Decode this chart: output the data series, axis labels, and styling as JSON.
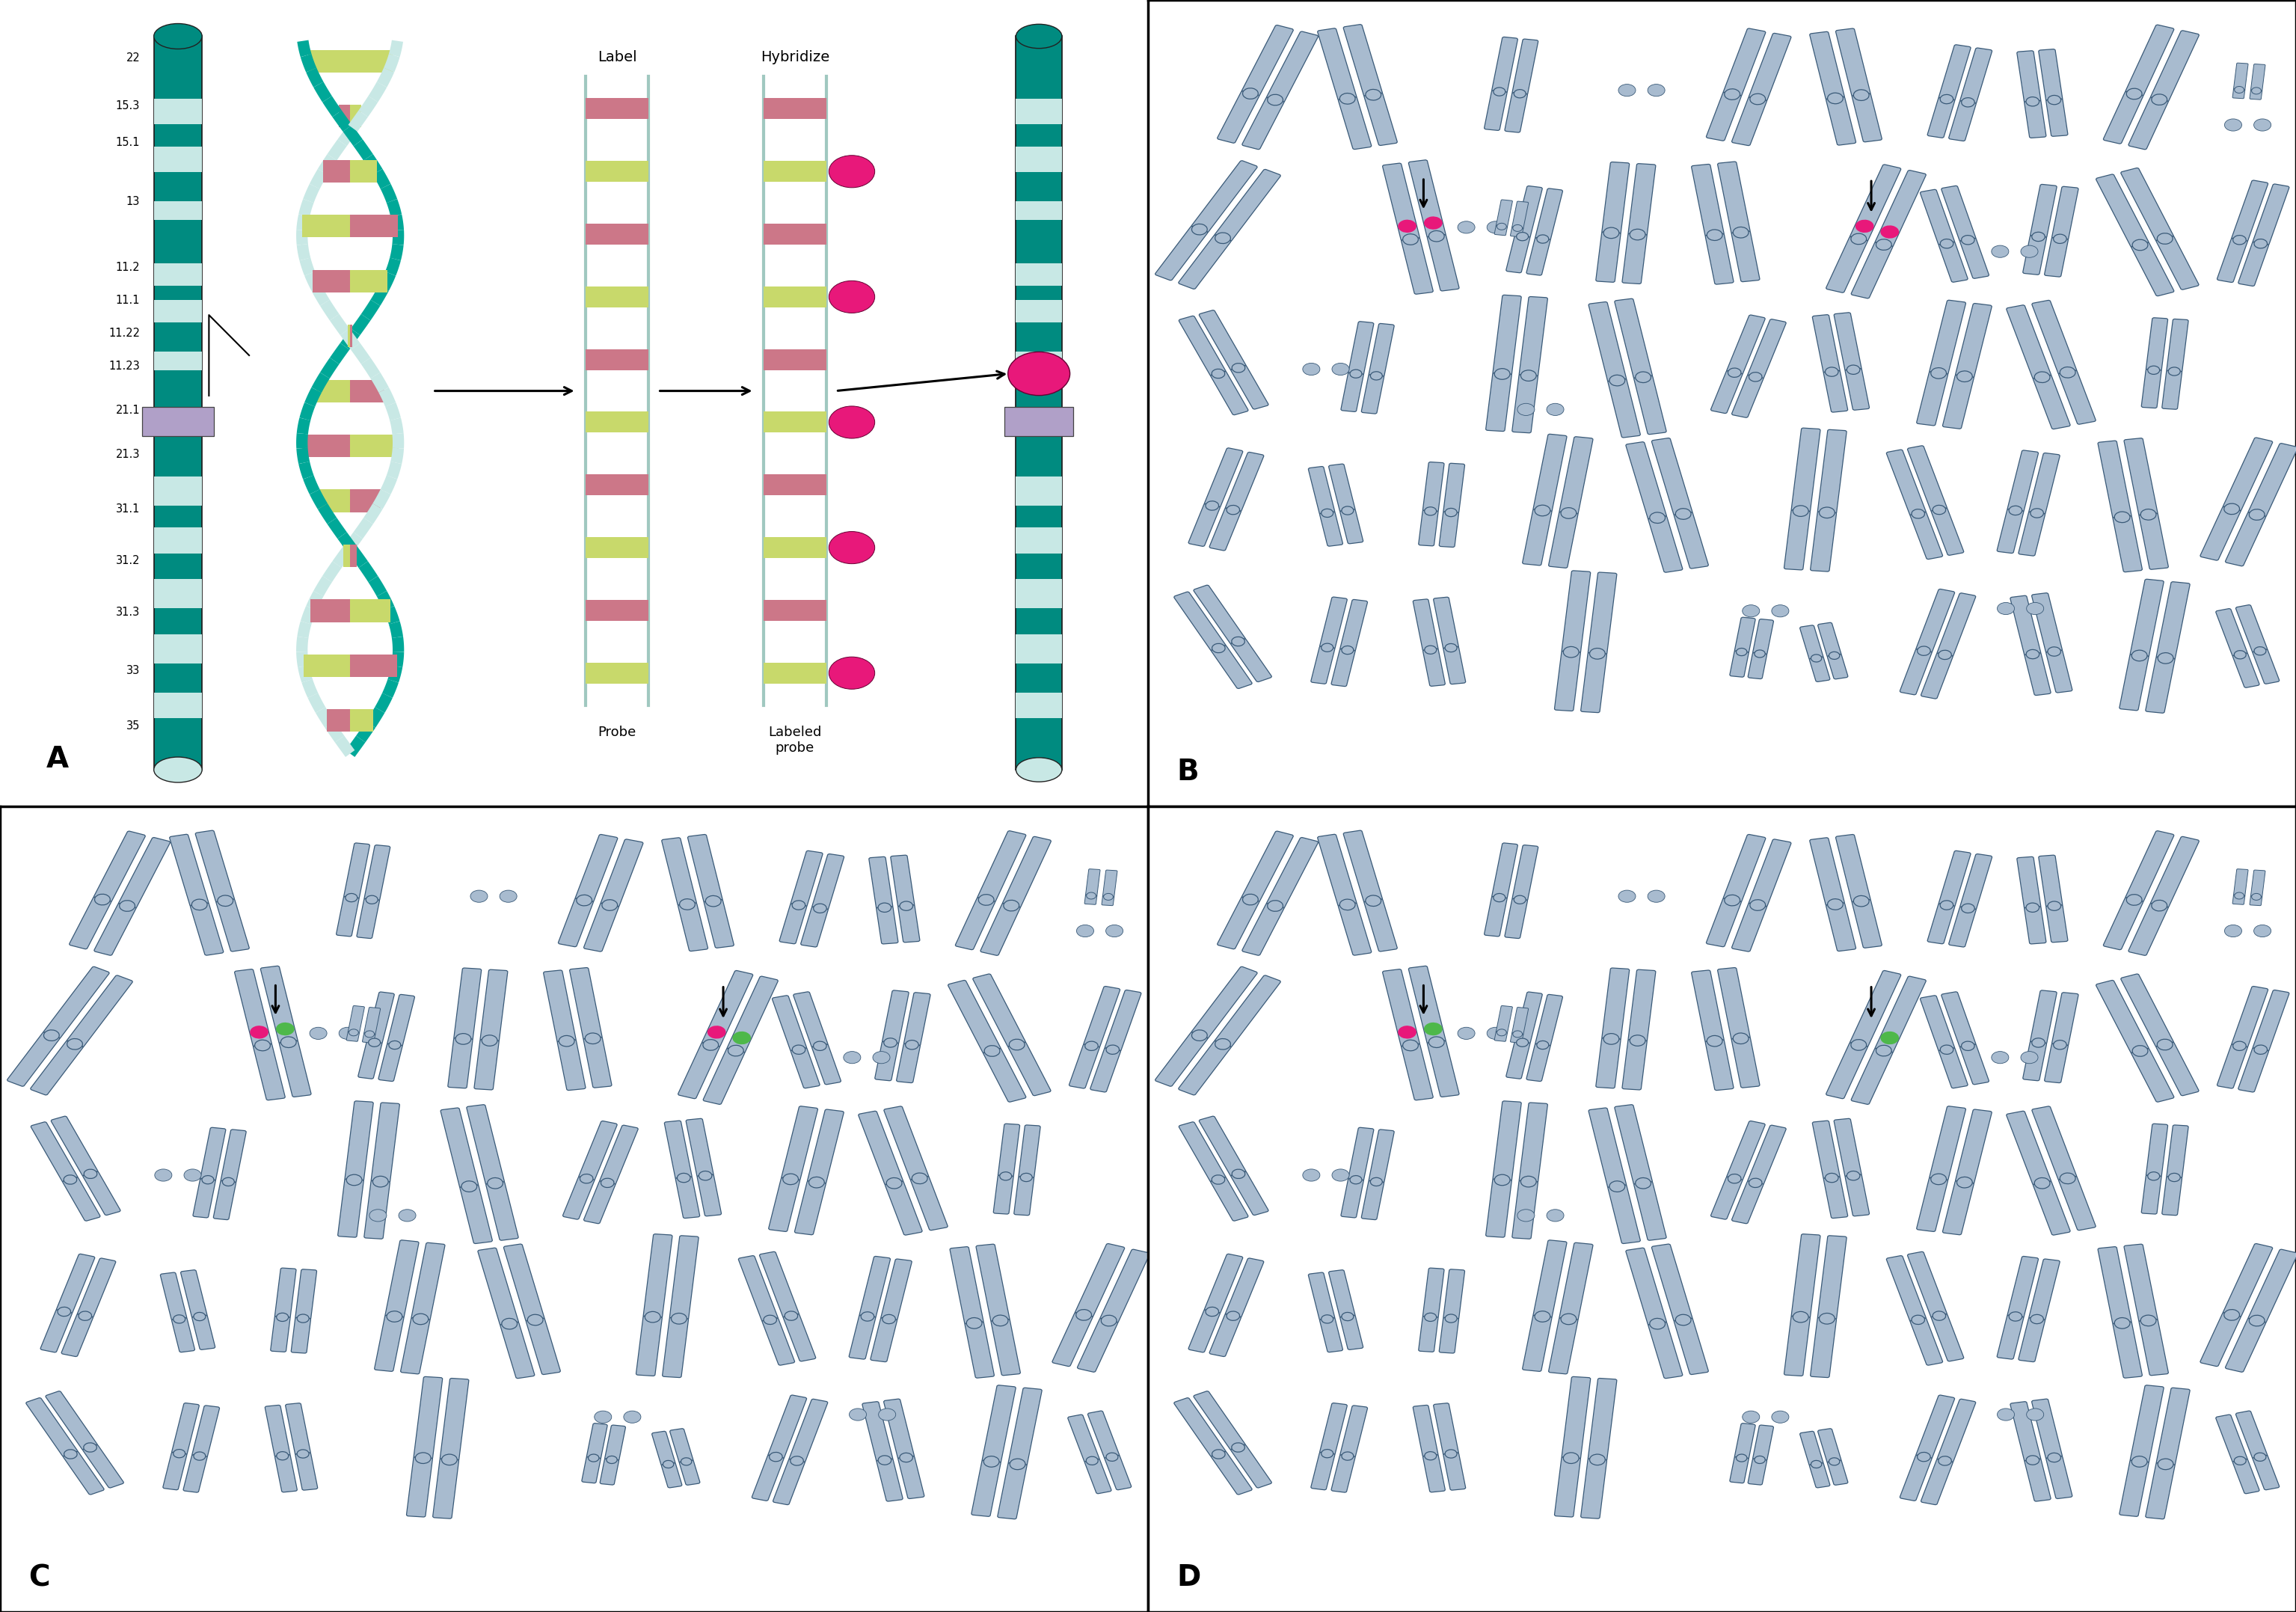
{
  "bg": "#ffffff",
  "teal_dark": "#008b80",
  "teal_mid": "#00a898",
  "teal_light": "#c8e8e5",
  "chr_blue": "#a8bbcf",
  "chr_blue_edge": "#3a5a78",
  "centromere_col": "#b0a0c8",
  "probe_green_rung": "#c8d96b",
  "probe_pink_rung": "#cc7788",
  "magenta": "#e8187a",
  "green_signal": "#4eb84a",
  "panel_lfs": 28,
  "annot_fs": 14,
  "band_label_positions": [
    [
      0.97,
      "22"
    ],
    [
      0.905,
      "15.3"
    ],
    [
      0.855,
      "15.1"
    ],
    [
      0.775,
      "13"
    ],
    [
      0.685,
      "11.2"
    ],
    [
      0.64,
      "11.1"
    ],
    [
      0.595,
      "11.22"
    ],
    [
      0.55,
      "11.23"
    ],
    [
      0.49,
      "21.1"
    ],
    [
      0.43,
      "21.3"
    ],
    [
      0.355,
      "31.1"
    ],
    [
      0.285,
      "31.2"
    ],
    [
      0.215,
      "31.3"
    ],
    [
      0.135,
      "33"
    ],
    [
      0.06,
      "35"
    ]
  ]
}
